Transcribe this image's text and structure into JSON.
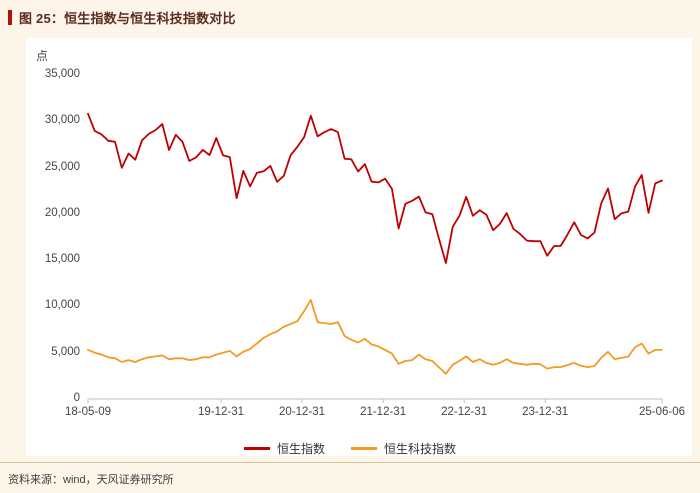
{
  "header": {
    "title": "图 25：恒生指数与恒生科技指数对比"
  },
  "footer": {
    "source": "资料来源：wind，天风证券研究所"
  },
  "colors": {
    "page_bg": "#FCF5E8",
    "plot_bg": "#FFFFFF",
    "accent_bar": "#B01111",
    "title_text": "#5B2C20",
    "axis_line": "#BFBFBF",
    "tick_text": "#454545",
    "divider": "#D8C49C",
    "hsi_red": "#C00000",
    "tech_orange": "#F59A23"
  },
  "chart_data": {
    "type": "line",
    "title": "恒生指数与恒生科技指数对比",
    "ylabel": "点",
    "ylim": [
      0,
      35000
    ],
    "yticks": [
      0,
      5000,
      10000,
      15000,
      20000,
      25000,
      30000,
      35000
    ],
    "grid": false,
    "legend_position": "bottom",
    "x_unit": "month",
    "x_start": "2018-05",
    "x_step_months": 1,
    "x_range": [
      "2018-05-09",
      "2025-06-06"
    ],
    "xticks": [
      {
        "label": "18-05-09",
        "month_index": 0
      },
      {
        "label": "19-12-31",
        "month_index": 19.7
      },
      {
        "label": "20-12-31",
        "month_index": 31.7
      },
      {
        "label": "21-12-31",
        "month_index": 43.7
      },
      {
        "label": "22-12-31",
        "month_index": 55.7
      },
      {
        "label": "23-12-31",
        "month_index": 67.7
      },
      {
        "label": "25-06-06",
        "month_index": 85
      }
    ],
    "series": [
      {
        "name": "恒生指数",
        "color": "#C00000",
        "values": [
          30808,
          28955,
          28583,
          27889,
          27789,
          24980,
          26507,
          25846,
          27942,
          28633,
          29051,
          29699,
          26901,
          28542,
          27778,
          25725,
          26092,
          26907,
          26346,
          28190,
          26313,
          26130,
          21696,
          24644,
          22961,
          24427,
          24595,
          25177,
          23459,
          24107,
          26341,
          27231,
          28284,
          30600,
          28378,
          28825,
          29152,
          28828,
          25961,
          25879,
          24576,
          25377,
          23475,
          23398,
          23802,
          22713,
          18415,
          21089,
          21415,
          21860,
          20157,
          19954,
          17223,
          14687,
          18597,
          19781,
          21842,
          19786,
          20400,
          19895,
          18234,
          18916,
          20079,
          18382,
          17810,
          17112,
          17043,
          17047,
          15485,
          16511,
          16541,
          17763,
          19100,
          17719,
          17345,
          17989,
          21134,
          22736,
          19424,
          20060,
          20225,
          22941,
          24200,
          20100,
          23290,
          23600
        ]
      },
      {
        "name": "恒生科技指数",
        "color": "#F59A23",
        "values": [
          5300,
          5000,
          4800,
          4500,
          4400,
          4000,
          4200,
          4000,
          4300,
          4500,
          4600,
          4700,
          4300,
          4400,
          4400,
          4200,
          4300,
          4500,
          4500,
          4800,
          5000,
          5200,
          4600,
          5100,
          5400,
          6000,
          6600,
          7000,
          7300,
          7800,
          8100,
          8400,
          9500,
          10700,
          8300,
          8200,
          8100,
          8300,
          6800,
          6400,
          6100,
          6500,
          5900,
          5670,
          5300,
          4900,
          3800,
          4100,
          4200,
          4800,
          4300,
          4100,
          3400,
          2720,
          3700,
          4100,
          4600,
          4000,
          4300,
          3900,
          3700,
          3900,
          4300,
          3900,
          3800,
          3700,
          3800,
          3764,
          3279,
          3431,
          3441,
          3678,
          3900,
          3590,
          3450,
          3570,
          4450,
          5100,
          4300,
          4440,
          4580,
          5580,
          6000,
          4900,
          5300,
          5300
        ]
      }
    ]
  }
}
